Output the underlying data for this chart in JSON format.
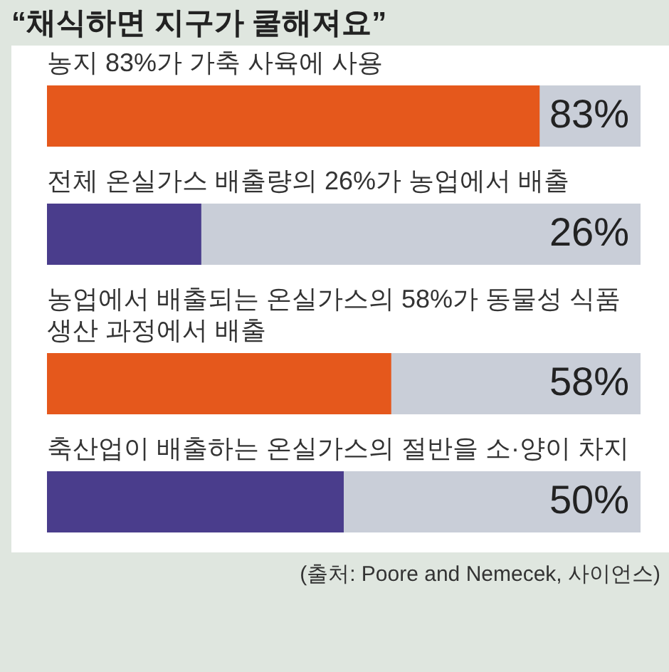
{
  "chart_data": {
    "type": "bar",
    "orientation": "horizontal",
    "title": "“채식하면 지구가 쿨해져요”",
    "categories": [
      "농지 83%가 가축 사육에 사용",
      "전체 온실가스 배출량의 26%가 농업에서 배출",
      "농업에서 배출되는 온실가스의 58%가 동물성 식품 생산 과정에서 배출",
      "축산업이 배출하는 온실가스의 절반을 소·양이 차지"
    ],
    "values": [
      83,
      26,
      58,
      50
    ],
    "colors": [
      "#e5581c",
      "#4a3d8c",
      "#e5581c",
      "#4a3d8c"
    ],
    "value_labels": [
      "83%",
      "26%",
      "58%",
      "50%"
    ],
    "xlim": [
      0,
      100
    ],
    "tick_labels": false,
    "annotations": [
      "(출처: Poore and Nemecek, 사이언스)"
    ]
  }
}
